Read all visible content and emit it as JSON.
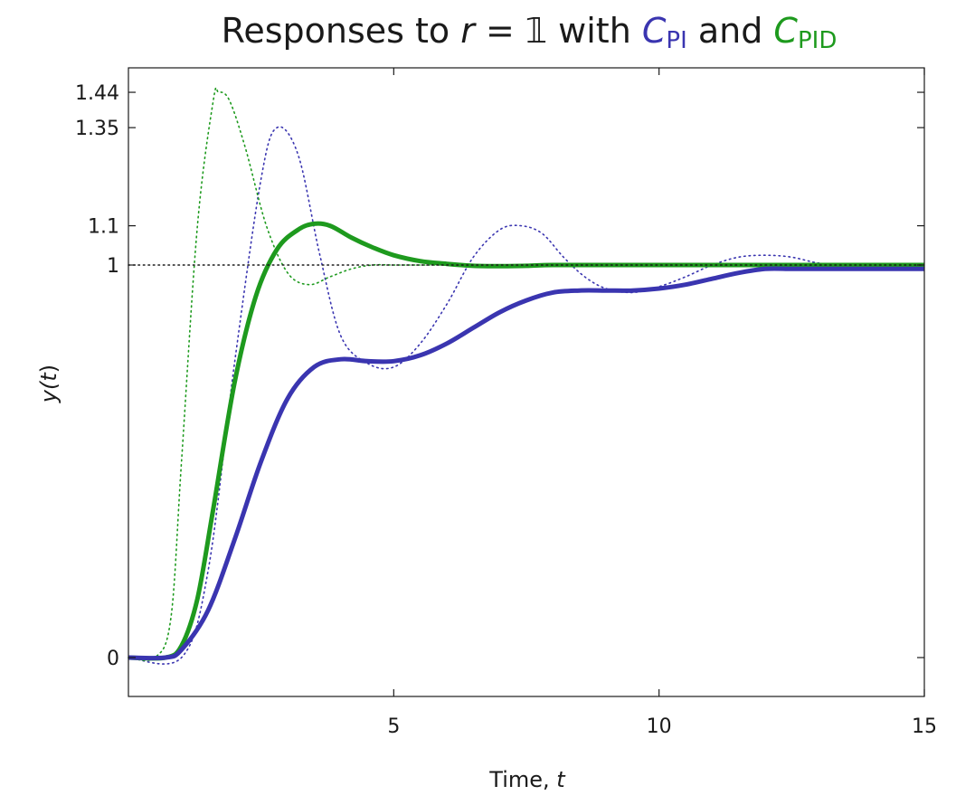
{
  "chart_data": {
    "type": "line",
    "title": {
      "prefix": "Responses to ",
      "var": "r",
      "eq": " = ",
      "one": "𝟙",
      "mid": " with ",
      "c1": "C",
      "c1_sub": "PI",
      "and": " and ",
      "c2": "C",
      "c2_sub": "PID"
    },
    "xlabel": {
      "text": "Time, ",
      "var": "t"
    },
    "ylabel": {
      "text": "y(",
      "var": "t",
      "close": ")"
    },
    "xlim": [
      0,
      15
    ],
    "ylim": [
      -0.1,
      1.5
    ],
    "xticks": [
      5,
      10,
      15
    ],
    "yticks": [
      0,
      1,
      1.1,
      1.35,
      1.44
    ],
    "ytick_labels": [
      "0",
      "1",
      "1.1",
      "1.35",
      "1.44"
    ],
    "grid": false,
    "colors": {
      "pi": "#3a35b0",
      "pid": "#1e9a1e",
      "ref": "#1a1a1a"
    },
    "series": [
      {
        "key": "pi_dotted",
        "style": "dotted",
        "color": "#3a35b0",
        "x": [
          0.0,
          1.0,
          1.5,
          2.0,
          2.5,
          2.8,
          3.2,
          3.6,
          4.0,
          4.5,
          5.0,
          5.5,
          6.0,
          6.5,
          7.0,
          7.4,
          7.8,
          8.2,
          8.6,
          9.0,
          9.5,
          10.0,
          10.5,
          11.0,
          11.5,
          12.0,
          12.5,
          13.0,
          13.5,
          14.0,
          15.0
        ],
        "y": [
          0.0,
          0.0,
          0.22,
          0.75,
          1.22,
          1.35,
          1.28,
          1.03,
          0.82,
          0.75,
          0.74,
          0.8,
          0.9,
          1.02,
          1.09,
          1.1,
          1.08,
          1.02,
          0.97,
          0.94,
          0.93,
          0.945,
          0.97,
          1.0,
          1.02,
          1.025,
          1.02,
          1.005,
          1.0,
          1.0,
          1.0
        ]
      },
      {
        "key": "pid_dotted",
        "style": "dotted",
        "color": "#1e9a1e",
        "x": [
          0.0,
          0.5,
          0.8,
          1.0,
          1.3,
          1.6,
          1.7,
          1.9,
          2.2,
          2.6,
          3.0,
          3.4,
          3.8,
          4.2,
          4.6,
          5.0,
          5.5,
          6.0,
          7.0,
          15.0
        ],
        "y": [
          0.0,
          0.0,
          0.1,
          0.5,
          1.1,
          1.42,
          1.44,
          1.42,
          1.3,
          1.1,
          0.98,
          0.95,
          0.97,
          0.99,
          1.0,
          1.0,
          1.0,
          1.0,
          1.0,
          1.0
        ]
      },
      {
        "key": "pid_solid",
        "style": "solid",
        "color": "#1e9a1e",
        "x": [
          0.0,
          0.7,
          1.0,
          1.3,
          1.6,
          2.0,
          2.4,
          2.8,
          3.2,
          3.5,
          3.8,
          4.2,
          4.6,
          5.0,
          5.5,
          6.0,
          6.5,
          7.0,
          7.5,
          8.0,
          9.0,
          10.0,
          12.0,
          15.0
        ],
        "y": [
          0.0,
          0.0,
          0.03,
          0.15,
          0.38,
          0.7,
          0.92,
          1.04,
          1.09,
          1.105,
          1.1,
          1.07,
          1.045,
          1.025,
          1.01,
          1.003,
          0.998,
          0.997,
          0.998,
          1.0,
          1.0,
          1.0,
          1.0,
          1.0
        ]
      },
      {
        "key": "pi_solid",
        "style": "solid",
        "color": "#3a35b0",
        "x": [
          0.0,
          0.7,
          1.0,
          1.5,
          2.0,
          2.5,
          3.0,
          3.5,
          4.0,
          4.5,
          5.0,
          5.5,
          6.0,
          6.5,
          7.0,
          7.5,
          8.0,
          8.5,
          9.0,
          9.5,
          10.0,
          10.5,
          11.0,
          11.5,
          12.0,
          12.5,
          13.0,
          13.5,
          14.0,
          15.0
        ],
        "y": [
          0.0,
          0.0,
          0.02,
          0.12,
          0.3,
          0.5,
          0.66,
          0.74,
          0.76,
          0.755,
          0.755,
          0.77,
          0.8,
          0.84,
          0.88,
          0.91,
          0.93,
          0.935,
          0.935,
          0.935,
          0.94,
          0.95,
          0.965,
          0.98,
          0.99,
          0.99,
          0.99,
          0.99,
          0.99,
          0.99
        ]
      },
      {
        "key": "reference",
        "style": "dotted",
        "color": "#1a1a1a",
        "x": [
          0,
          15
        ],
        "y": [
          1,
          1
        ]
      }
    ]
  }
}
